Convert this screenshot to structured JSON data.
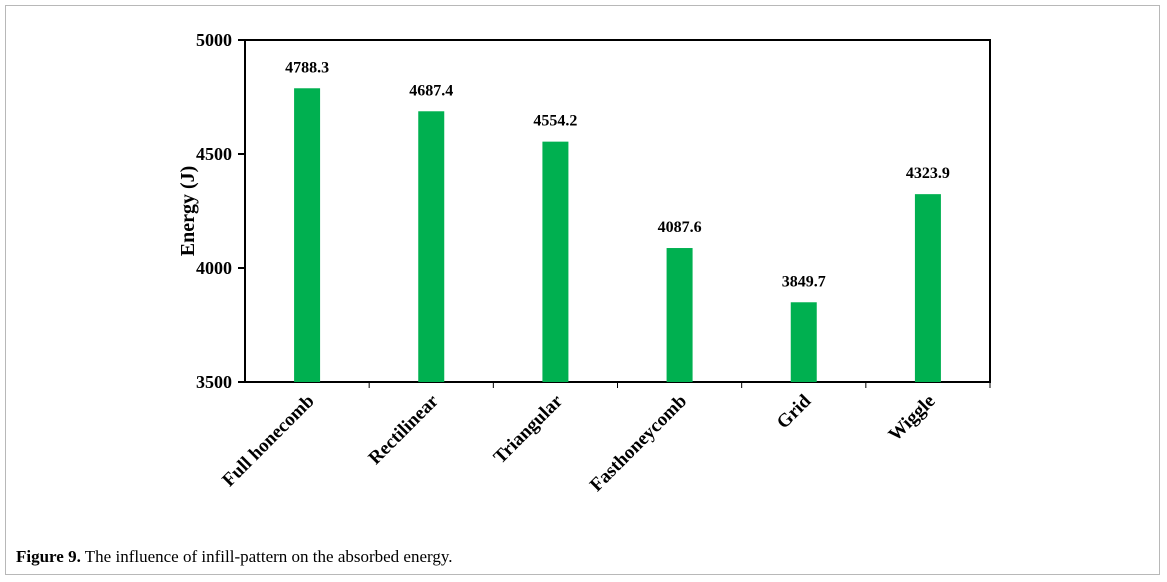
{
  "chart_data": {
    "type": "bar",
    "categories": [
      "Full honecomb",
      "Rectilinear",
      "Triangular",
      "Fasthoneycomb",
      "Grid",
      "Wiggle"
    ],
    "values": [
      4788.3,
      4687.4,
      4554.2,
      4087.6,
      3849.7,
      4323.9
    ],
    "value_labels": [
      "4788.3",
      "4687.4",
      "4554.2",
      "4087.6",
      "3849.7",
      "4323.9"
    ],
    "ylabel": "Energy (J)",
    "xlabel": "",
    "ylim": [
      3500,
      5000
    ],
    "yticks": [
      3500,
      4000,
      4500,
      5000
    ],
    "bar_color": "#00b050",
    "grid": false,
    "legend": "none"
  },
  "caption": {
    "label": "Figure 9.",
    "text": " The influence of infill-pattern on the absorbed energy."
  }
}
